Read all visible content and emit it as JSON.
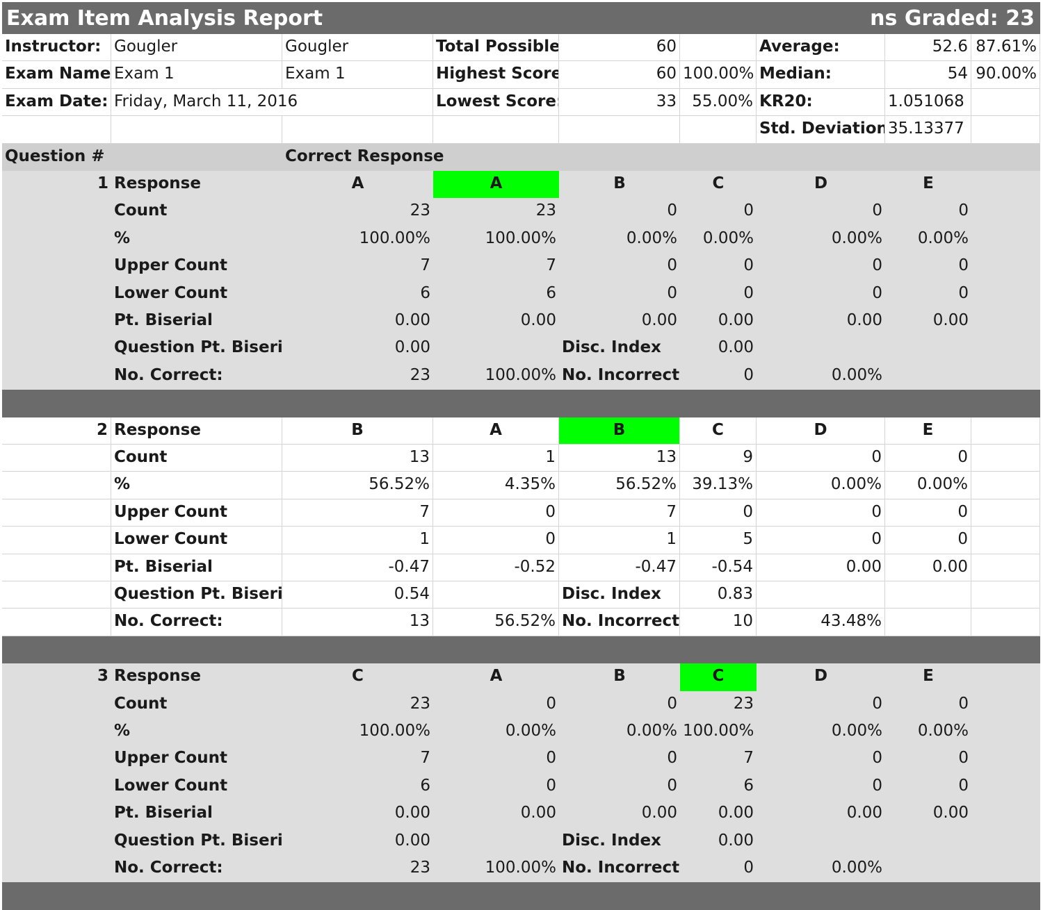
{
  "report": {
    "title": "Exam Item Analysis Report",
    "graded_label": "ns Graded:",
    "graded_value": "23"
  },
  "summary": {
    "instructor_label": "Instructor:",
    "instructor_first": "Gougler",
    "instructor_last": "Gougler",
    "exam_name_label": "Exam Name:",
    "exam_name": "Exam 1",
    "exam_name_2": "Exam 1",
    "exam_date_label": "Exam Date:",
    "exam_date": "Friday, March 11, 2016",
    "total_possible_label": "Total Possible:",
    "total_possible": "60",
    "highest_score_label": "Highest Score:",
    "highest_score": "60",
    "highest_pct": "100.00%",
    "lowest_score_label": "Lowest Score:",
    "lowest_score": "33",
    "lowest_pct": "55.00%",
    "average_label": "Average:",
    "average": "52.6",
    "average_pct": "87.61%",
    "median_label": "Median:",
    "median": "54",
    "median_pct": "90.00%",
    "kr20_label": "KR20:",
    "kr20": "1.051068",
    "std_dev_label": "Std. Deviation:",
    "std_dev": "35.13377"
  },
  "column_header": {
    "question": "Question #",
    "correct_response": "Correct Response"
  },
  "labels": {
    "response": "Response",
    "count": "Count",
    "percent": "%",
    "upper": "Upper Count",
    "lower": "Lower Count",
    "pt_biserial": "Pt. Biserial",
    "question_pt_biserial": "Question Pt. Biseria",
    "no_correct": "No. Correct:",
    "disc_index": "Disc. Index",
    "no_incorrect": "No. Incorrect:"
  },
  "colors": {
    "title_bar": "#6b6b6b",
    "section_gray": "#dedede",
    "header_gray": "#cfcfcf",
    "correct_highlight": "#00ff00"
  },
  "questions": [
    {
      "number": "1",
      "correct": "A",
      "correct_index": 0,
      "shaded": true,
      "options": [
        "A",
        "B",
        "C",
        "D",
        "E"
      ],
      "count": [
        "23",
        "23",
        "0",
        "0",
        "0",
        "0"
      ],
      "percent": [
        "100.00%",
        "100.00%",
        "0.00%",
        "0.00%",
        "0.00%",
        "0.00%"
      ],
      "upper": [
        "7",
        "7",
        "0",
        "0",
        "0",
        "0"
      ],
      "lower": [
        "6",
        "6",
        "0",
        "0",
        "0",
        "0"
      ],
      "pt_biserial": [
        "0.00",
        "0.00",
        "0.00",
        "0.00",
        "0.00",
        "0.00"
      ],
      "question_pt_biserial": "0.00",
      "disc_index": "0.00",
      "no_correct": "23",
      "no_correct_pct": "100.00%",
      "no_incorrect": "0",
      "no_incorrect_pct": "0.00%"
    },
    {
      "number": "2",
      "correct": "B",
      "correct_index": 1,
      "shaded": false,
      "options": [
        "A",
        "B",
        "C",
        "D",
        "E"
      ],
      "count": [
        "13",
        "1",
        "13",
        "9",
        "0",
        "0"
      ],
      "percent": [
        "56.52%",
        "4.35%",
        "56.52%",
        "39.13%",
        "0.00%",
        "0.00%"
      ],
      "upper": [
        "7",
        "0",
        "7",
        "0",
        "0",
        "0"
      ],
      "lower": [
        "1",
        "0",
        "1",
        "5",
        "0",
        "0"
      ],
      "pt_biserial": [
        "-0.47",
        "-0.52",
        "-0.47",
        "-0.54",
        "0.00",
        "0.00"
      ],
      "question_pt_biserial": "0.54",
      "disc_index": "0.83",
      "no_correct": "13",
      "no_correct_pct": "56.52%",
      "no_incorrect": "10",
      "no_incorrect_pct": "43.48%"
    },
    {
      "number": "3",
      "correct": "C",
      "correct_index": 2,
      "shaded": true,
      "options": [
        "A",
        "B",
        "C",
        "D",
        "E"
      ],
      "count": [
        "23",
        "0",
        "0",
        "23",
        "0",
        "0"
      ],
      "percent": [
        "100.00%",
        "0.00%",
        "0.00%",
        "100.00%",
        "0.00%",
        "0.00%"
      ],
      "upper": [
        "7",
        "0",
        "0",
        "7",
        "0",
        "0"
      ],
      "lower": [
        "6",
        "0",
        "0",
        "6",
        "0",
        "0"
      ],
      "pt_biserial": [
        "0.00",
        "0.00",
        "0.00",
        "0.00",
        "0.00",
        "0.00"
      ],
      "question_pt_biserial": "0.00",
      "disc_index": "0.00",
      "no_correct": "23",
      "no_correct_pct": "100.00%",
      "no_incorrect": "0",
      "no_incorrect_pct": "0.00%"
    }
  ]
}
